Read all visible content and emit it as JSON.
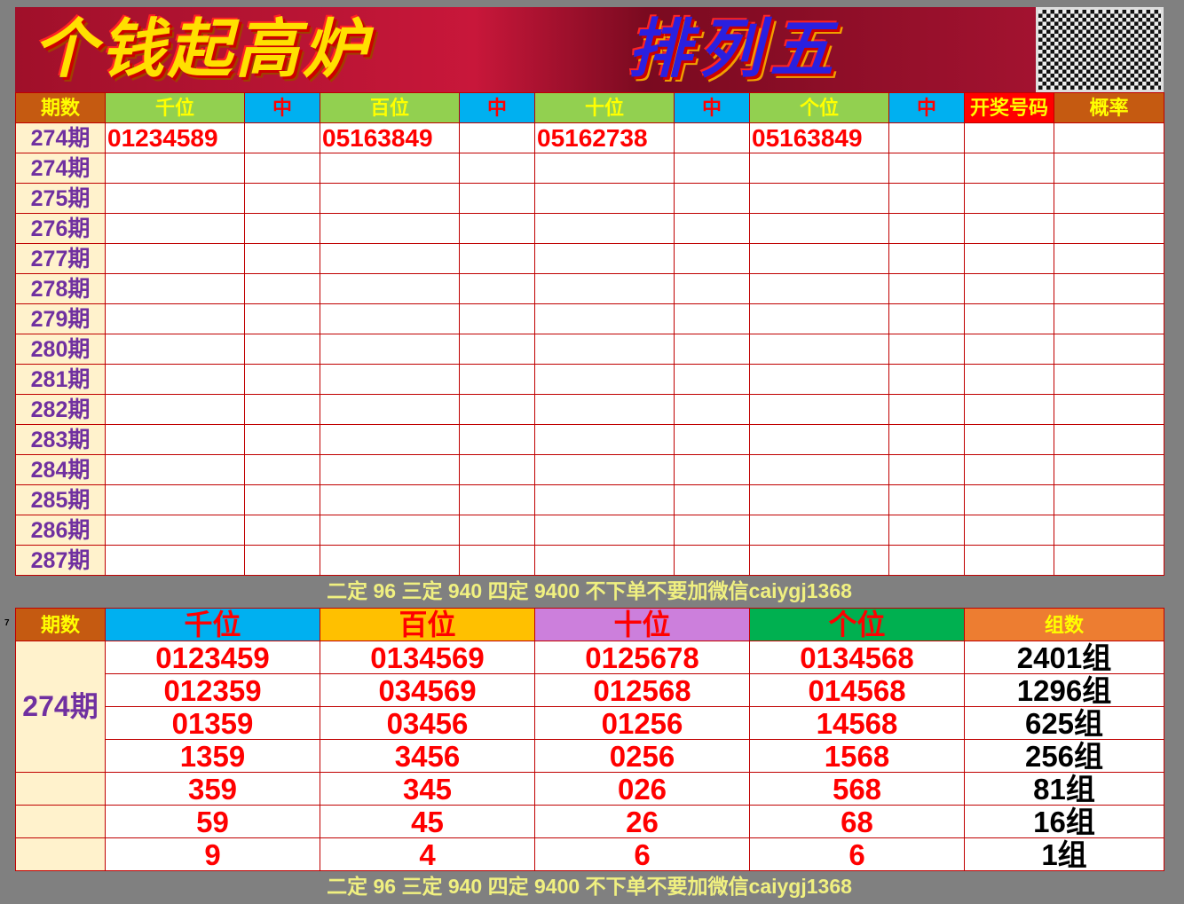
{
  "banner": {
    "left": "个钱起高炉",
    "right": "排列五"
  },
  "top": {
    "headers": [
      "期数",
      "千位",
      "中",
      "百位",
      "中",
      "十位",
      "中",
      "个位",
      "中",
      "开奖号码",
      "概率"
    ],
    "rows": [
      {
        "period": "274期",
        "qian": "01234589",
        "bai": "05163849",
        "shi": "05162738",
        "ge": "05163849"
      },
      {
        "period": "274期"
      },
      {
        "period": "275期"
      },
      {
        "period": "276期"
      },
      {
        "period": "277期"
      },
      {
        "period": "278期"
      },
      {
        "period": "279期"
      },
      {
        "period": "280期"
      },
      {
        "period": "281期"
      },
      {
        "period": "282期"
      },
      {
        "period": "283期"
      },
      {
        "period": "284期"
      },
      {
        "period": "285期"
      },
      {
        "period": "286期"
      },
      {
        "period": "287期"
      }
    ]
  },
  "note": "二定 96 三定 940 四定 9400 不下单不要加微信caiygj1368",
  "row_marker": "7",
  "bottom": {
    "headers": [
      "期数",
      "千位",
      "百位",
      "十位",
      "个位",
      "组数"
    ],
    "period": "274期",
    "rows": [
      [
        "0123459",
        "0134569",
        "0125678",
        "0134568",
        "2401组"
      ],
      [
        "012359",
        "034569",
        "012568",
        "014568",
        "1296组"
      ],
      [
        "01359",
        "03456",
        "01256",
        "14568",
        "625组"
      ],
      [
        "1359",
        "3456",
        "0256",
        "1568",
        "256组"
      ],
      [
        "359",
        "345",
        "026",
        "568",
        "81组"
      ],
      [
        "59",
        "45",
        "26",
        "68",
        "16组"
      ],
      [
        "9",
        "4",
        "6",
        "6",
        "1组"
      ]
    ]
  },
  "colors": {
    "green": "#92d050",
    "blue": "#00b0f0",
    "orange": "#c55a11",
    "red": "#ff0000",
    "yellow": "#ffc000",
    "purple": "#cc7fdc",
    "dkgreen": "#00b050",
    "peach": "#ed7d31"
  }
}
